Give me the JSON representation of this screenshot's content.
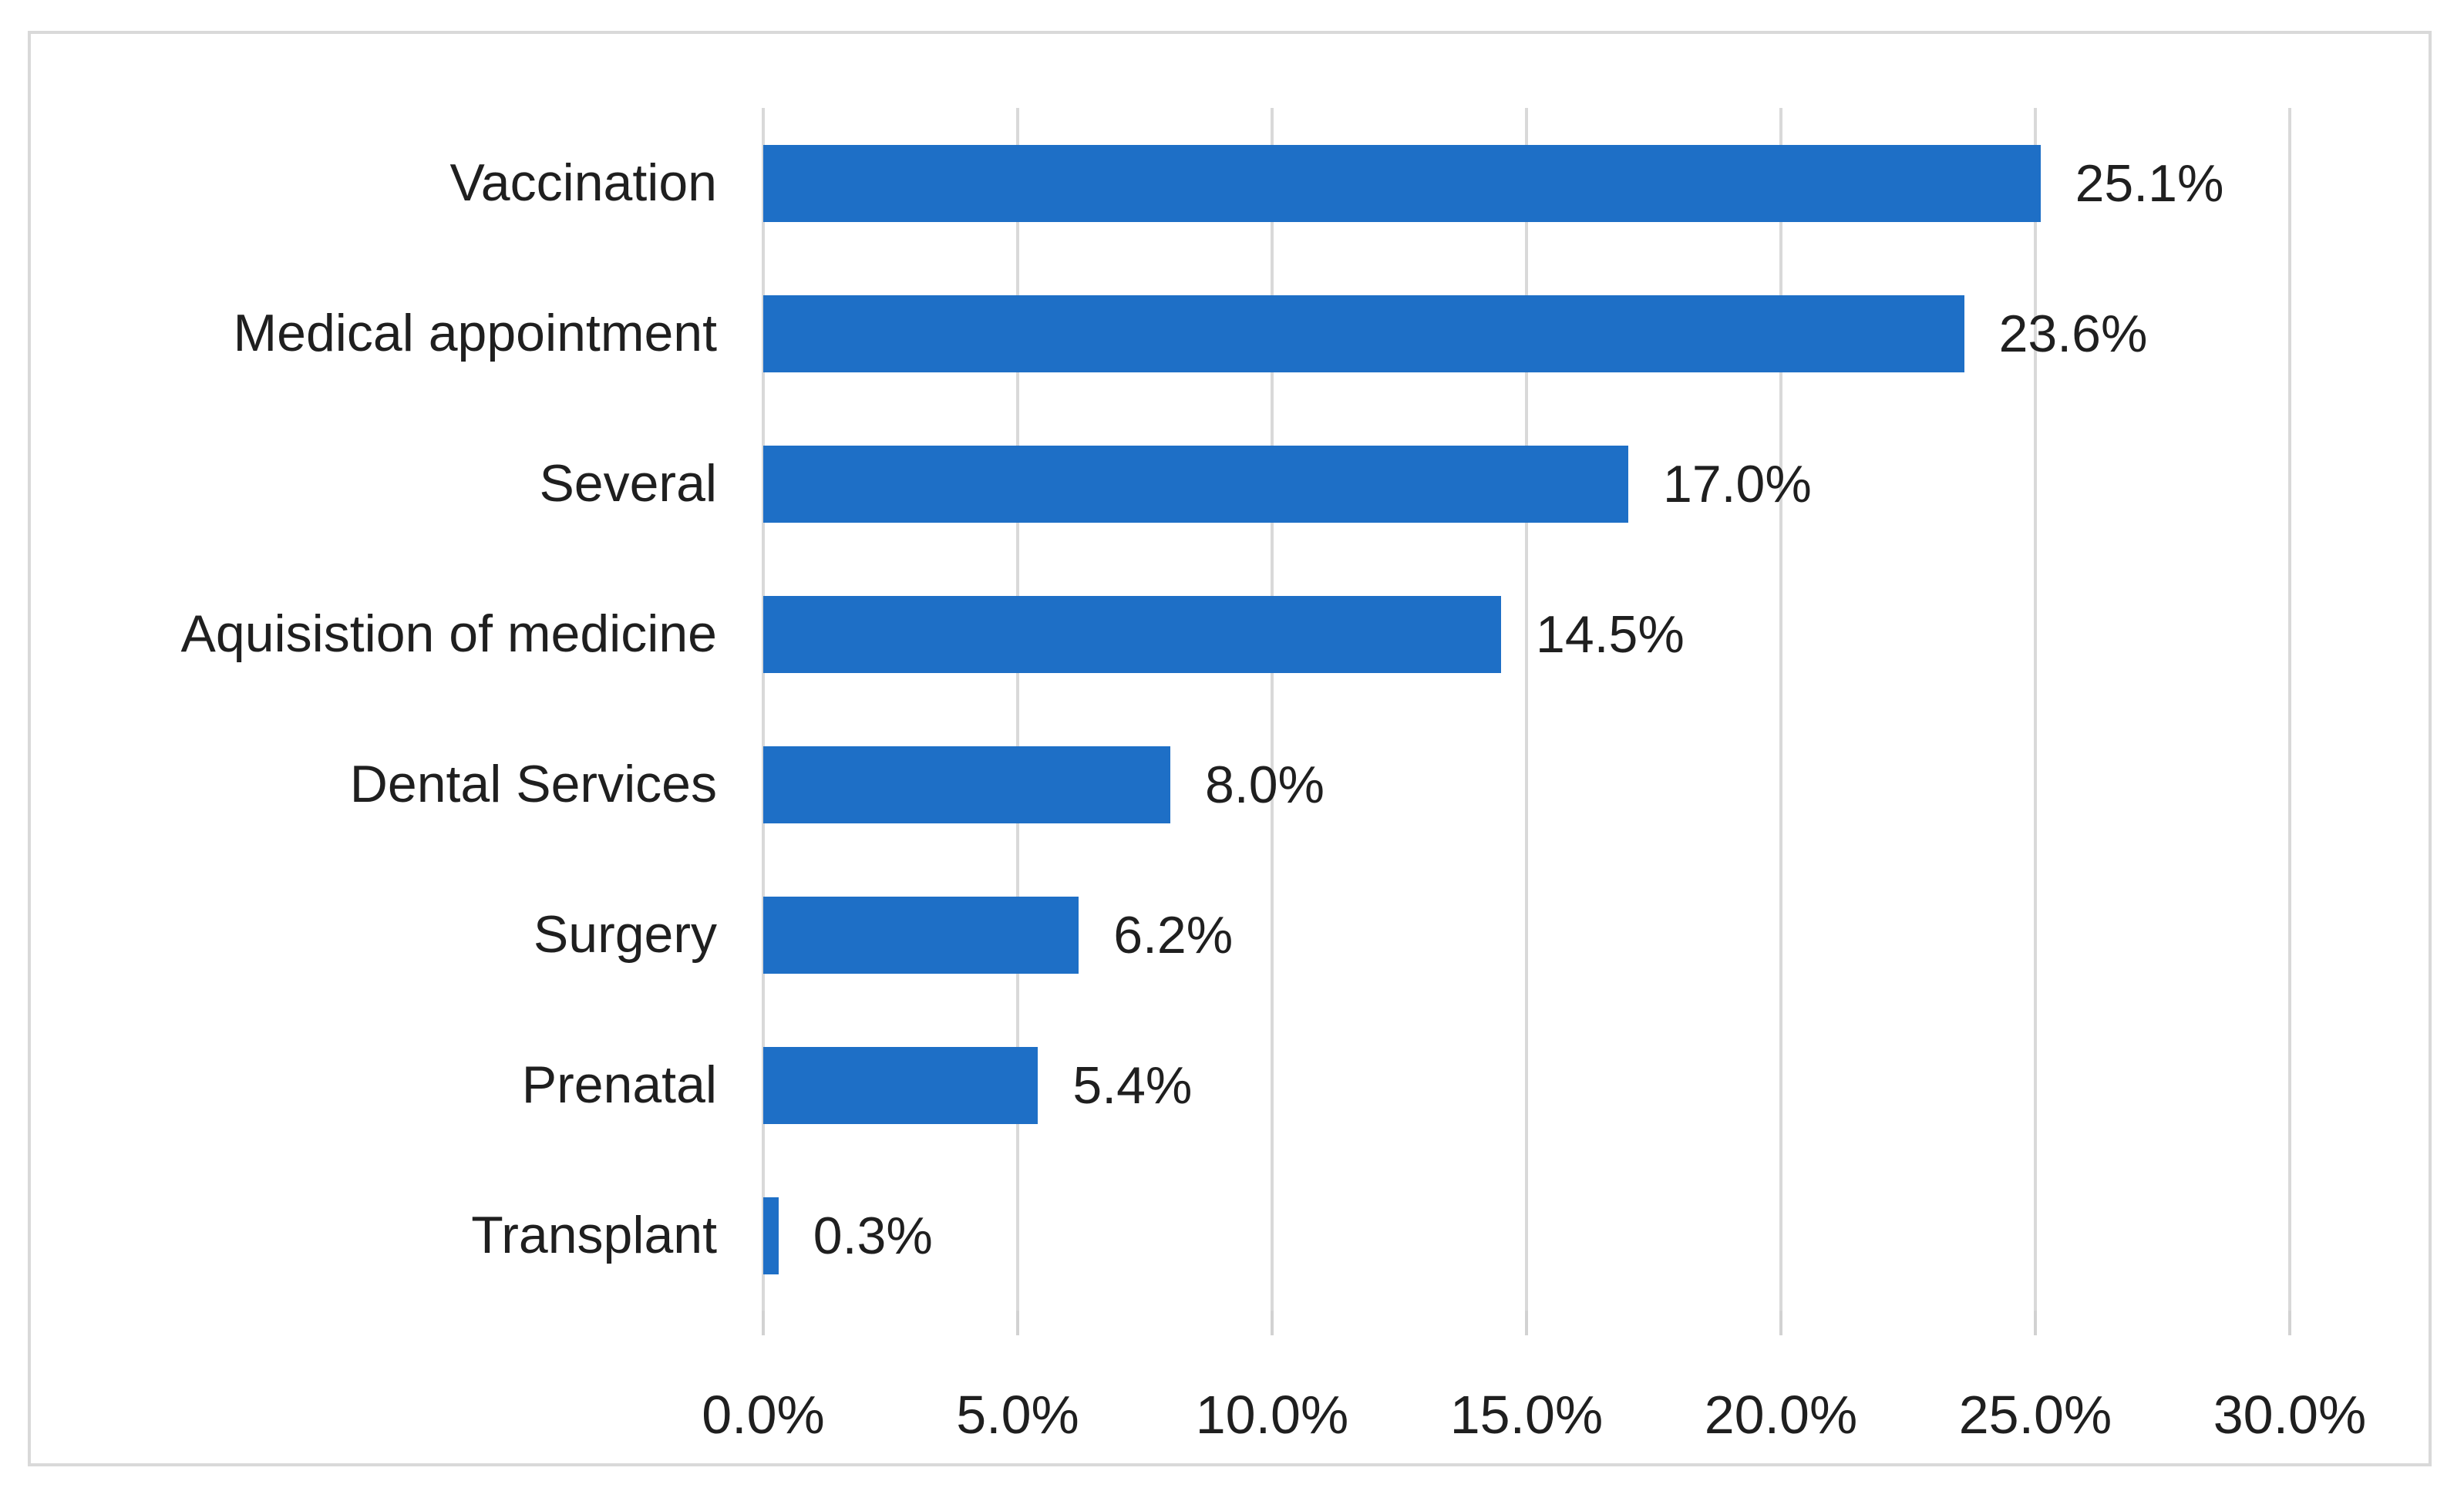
{
  "chart_data": {
    "type": "bar",
    "orientation": "horizontal",
    "title": "",
    "categories": [
      "Vaccination",
      "Medical appointment",
      "Several",
      "Aquisistion of medicine",
      "Dental Services",
      "Surgery",
      "Prenatal",
      "Transplant"
    ],
    "values": [
      25.1,
      23.6,
      17.0,
      14.5,
      8.0,
      6.2,
      5.4,
      0.3
    ],
    "value_labels": [
      "25.1%",
      "23.6%",
      "17.0%",
      "14.5%",
      "8.0%",
      "6.2%",
      "5.4%",
      "0.3%"
    ],
    "x_axis": {
      "min": 0,
      "max": 30,
      "ticks": [
        0,
        5,
        10,
        15,
        20,
        25,
        30
      ],
      "tick_labels": [
        "0.0%",
        "5.0%",
        "10.0%",
        "15.0%",
        "20.0%",
        "25.0%",
        "30.0%"
      ]
    },
    "grid": true,
    "legend": false,
    "colors": {
      "bar": "#1E6FC6",
      "gridline": "#D9D9D9",
      "frame_border": "#D9D9D9",
      "text": "#1F1F1F",
      "background": "#FFFFFF"
    }
  }
}
